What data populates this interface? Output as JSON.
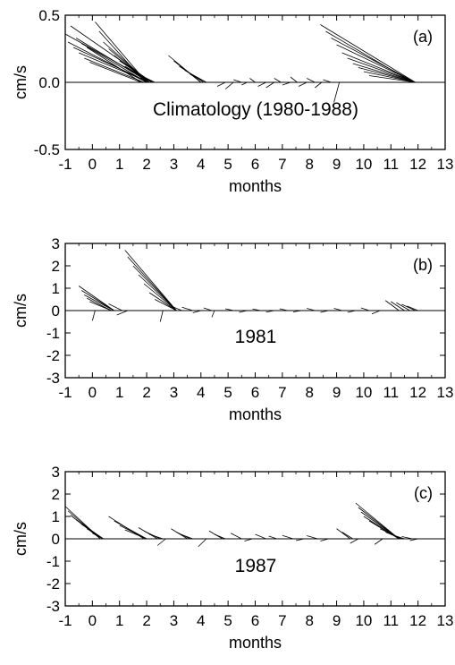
{
  "chart_data": [
    {
      "type": "stick-vector-plot",
      "panel_label": "(a)",
      "annotation": "Climatology (1980-1988)",
      "xlabel": "months",
      "ylabel": "cm/s",
      "xlim": [
        -1,
        13
      ],
      "ylim": [
        -0.5,
        0.5
      ],
      "xticks": [
        "-1",
        "0",
        "1",
        "2",
        "3",
        "4",
        "5",
        "6",
        "7",
        "8",
        "9",
        "10",
        "11",
        "12",
        "13"
      ],
      "yticks": [
        "-0.5",
        "0.0",
        "0.5"
      ],
      "grid": false,
      "vectors": [
        {
          "x": -1.0,
          "dx": 3.2,
          "dy": 0.36
        },
        {
          "x": -0.9,
          "dx": 2.9,
          "dy": 0.3
        },
        {
          "x": -0.8,
          "dx": 3.0,
          "dy": 0.42
        },
        {
          "x": -0.7,
          "dx": 2.8,
          "dy": 0.26
        },
        {
          "x": -0.6,
          "dx": 2.7,
          "dy": 0.33
        },
        {
          "x": -0.5,
          "dx": 2.6,
          "dy": 0.22
        },
        {
          "x": -0.4,
          "dx": 2.4,
          "dy": 0.29
        },
        {
          "x": -0.3,
          "dx": 2.2,
          "dy": 0.18
        },
        {
          "x": -0.2,
          "dx": 2.0,
          "dy": 0.26
        },
        {
          "x": -0.1,
          "dx": 1.9,
          "dy": 0.15
        },
        {
          "x": 0.1,
          "dx": 1.9,
          "dy": 0.45
        },
        {
          "x": 0.25,
          "dx": 1.7,
          "dy": 0.38
        },
        {
          "x": 0.4,
          "dx": 1.7,
          "dy": 0.3
        },
        {
          "x": 0.6,
          "dx": 1.5,
          "dy": 0.25
        },
        {
          "x": 0.8,
          "dx": 1.3,
          "dy": 0.2
        },
        {
          "x": 1.0,
          "dx": 1.2,
          "dy": 0.16
        },
        {
          "x": 1.2,
          "dx": 1.0,
          "dy": 0.12
        },
        {
          "x": 1.4,
          "dx": 0.9,
          "dy": 0.09
        },
        {
          "x": 1.6,
          "dx": 0.7,
          "dy": 0.06
        },
        {
          "x": 2.8,
          "dx": 1.2,
          "dy": 0.2
        },
        {
          "x": 3.0,
          "dx": 1.0,
          "dy": 0.16
        },
        {
          "x": 3.2,
          "dx": 0.9,
          "dy": 0.12
        },
        {
          "x": 3.4,
          "dx": 0.8,
          "dy": 0.09
        },
        {
          "x": 3.6,
          "dx": 0.6,
          "dy": 0.06
        },
        {
          "x": 4.6,
          "dx": 0.3,
          "dy": -0.03
        },
        {
          "x": 4.9,
          "dx": 0.3,
          "dy": -0.05
        },
        {
          "x": 5.2,
          "dx": 0.3,
          "dy": 0.02
        },
        {
          "x": 5.5,
          "dx": 0.2,
          "dy": -0.02
        },
        {
          "x": 5.8,
          "dx": 0.2,
          "dy": 0.03
        },
        {
          "x": 6.1,
          "dx": 0.3,
          "dy": -0.03
        },
        {
          "x": 6.4,
          "dx": 0.3,
          "dy": -0.04
        },
        {
          "x": 6.7,
          "dx": 0.25,
          "dy": 0.03
        },
        {
          "x": 7.0,
          "dx": 0.3,
          "dy": -0.02
        },
        {
          "x": 7.3,
          "dx": 0.25,
          "dy": 0.04
        },
        {
          "x": 7.6,
          "dx": 0.3,
          "dy": -0.03
        },
        {
          "x": 7.9,
          "dx": 0.3,
          "dy": 0.03
        },
        {
          "x": 8.2,
          "dx": 0.25,
          "dy": -0.04
        },
        {
          "x": 8.5,
          "dx": 0.3,
          "dy": 0.02
        },
        {
          "x": 8.9,
          "dx": 0.2,
          "dy": -0.15
        },
        {
          "x": 8.4,
          "dx": 3.5,
          "dy": 0.43
        },
        {
          "x": 8.6,
          "dx": 3.2,
          "dy": 0.38
        },
        {
          "x": 8.8,
          "dx": 3.1,
          "dy": 0.33
        },
        {
          "x": 9.0,
          "dx": 2.9,
          "dy": 0.28
        },
        {
          "x": 9.2,
          "dx": 2.7,
          "dy": 0.22
        },
        {
          "x": 9.4,
          "dx": 2.5,
          "dy": 0.18
        },
        {
          "x": 9.6,
          "dx": 2.3,
          "dy": 0.14
        },
        {
          "x": 9.8,
          "dx": 2.1,
          "dy": 0.11
        },
        {
          "x": 10.0,
          "dx": 1.9,
          "dy": 0.08
        },
        {
          "x": 10.2,
          "dx": 1.7,
          "dy": 0.05
        }
      ]
    },
    {
      "type": "stick-vector-plot",
      "panel_label": "(b)",
      "annotation": "1981",
      "xlabel": "months",
      "ylabel": "cm/s",
      "xlim": [
        -1,
        13
      ],
      "ylim": [
        -3,
        3
      ],
      "xticks": [
        "-1",
        "0",
        "1",
        "2",
        "3",
        "4",
        "5",
        "6",
        "7",
        "8",
        "9",
        "10",
        "11",
        "12",
        "13"
      ],
      "yticks": [
        "-3",
        "-2",
        "-1",
        "0",
        "1",
        "2",
        "3"
      ],
      "grid": false,
      "vectors": [
        {
          "x": -0.5,
          "dx": 1.3,
          "dy": 1.1
        },
        {
          "x": -0.4,
          "dx": 1.2,
          "dy": 0.9
        },
        {
          "x": -0.3,
          "dx": 1.1,
          "dy": 0.7
        },
        {
          "x": -0.2,
          "dx": 0.9,
          "dy": 0.55
        },
        {
          "x": -0.1,
          "dx": 0.8,
          "dy": 0.4
        },
        {
          "x": 0.0,
          "dx": 0.1,
          "dy": -0.45
        },
        {
          "x": 0.6,
          "dx": 0.5,
          "dy": 0.3
        },
        {
          "x": 0.9,
          "dx": 0.4,
          "dy": -0.2
        },
        {
          "x": 1.2,
          "dx": 1.9,
          "dy": 2.7
        },
        {
          "x": 1.3,
          "dx": 1.8,
          "dy": 2.4
        },
        {
          "x": 1.5,
          "dx": 1.6,
          "dy": 2.0
        },
        {
          "x": 1.7,
          "dx": 1.4,
          "dy": 1.6
        },
        {
          "x": 1.9,
          "dx": 1.2,
          "dy": 1.2
        },
        {
          "x": 2.1,
          "dx": 1.0,
          "dy": 0.8
        },
        {
          "x": 2.3,
          "dx": 0.8,
          "dy": 0.5
        },
        {
          "x": 2.5,
          "dx": 0.1,
          "dy": -0.5
        },
        {
          "x": 2.9,
          "dx": 0.4,
          "dy": 0.2
        },
        {
          "x": 3.3,
          "dx": 0.4,
          "dy": 0.15
        },
        {
          "x": 3.7,
          "dx": 0.3,
          "dy": -0.1
        },
        {
          "x": 4.1,
          "dx": 0.3,
          "dy": 0.12
        },
        {
          "x": 4.4,
          "dx": 0.1,
          "dy": -0.3
        },
        {
          "x": 4.9,
          "dx": 0.3,
          "dy": 0.08
        },
        {
          "x": 5.4,
          "dx": 0.3,
          "dy": -0.08
        },
        {
          "x": 5.9,
          "dx": 0.3,
          "dy": 0.07
        },
        {
          "x": 6.4,
          "dx": 0.3,
          "dy": -0.07
        },
        {
          "x": 6.9,
          "dx": 0.3,
          "dy": 0.08
        },
        {
          "x": 7.4,
          "dx": 0.3,
          "dy": -0.06
        },
        {
          "x": 7.9,
          "dx": 0.3,
          "dy": 0.1
        },
        {
          "x": 8.4,
          "dx": 0.3,
          "dy": -0.08
        },
        {
          "x": 8.9,
          "dx": 0.3,
          "dy": 0.1
        },
        {
          "x": 9.4,
          "dx": 0.3,
          "dy": -0.08
        },
        {
          "x": 9.9,
          "dx": 0.3,
          "dy": 0.12
        },
        {
          "x": 10.3,
          "dx": 0.3,
          "dy": -0.15
        },
        {
          "x": 10.8,
          "dx": 0.5,
          "dy": 0.45
        },
        {
          "x": 11.0,
          "dx": 0.5,
          "dy": 0.4
        },
        {
          "x": 11.2,
          "dx": 0.5,
          "dy": 0.35
        },
        {
          "x": 11.4,
          "dx": 0.5,
          "dy": 0.28
        },
        {
          "x": 11.6,
          "dx": 0.4,
          "dy": 0.2
        }
      ]
    },
    {
      "type": "stick-vector-plot",
      "panel_label": "(c)",
      "annotation": "1987",
      "xlabel": "months",
      "ylabel": "cm/s",
      "xlim": [
        -1,
        13
      ],
      "ylim": [
        -3,
        3
      ],
      "xticks": [
        "-1",
        "0",
        "1",
        "2",
        "3",
        "4",
        "5",
        "6",
        "7",
        "8",
        "9",
        "10",
        "11",
        "12",
        "13"
      ],
      "yticks": [
        "-3",
        "-2",
        "-1",
        "0",
        "1",
        "2",
        "3"
      ],
      "grid": false,
      "vectors": [
        {
          "x": -1.0,
          "dx": 1.3,
          "dy": 1.45
        },
        {
          "x": -0.9,
          "dx": 1.2,
          "dy": 1.25
        },
        {
          "x": -0.8,
          "dx": 1.1,
          "dy": 1.05
        },
        {
          "x": -0.6,
          "dx": 1.0,
          "dy": 0.85
        },
        {
          "x": -0.4,
          "dx": 0.8,
          "dy": 0.65
        },
        {
          "x": -0.2,
          "dx": 0.6,
          "dy": 0.45
        },
        {
          "x": 0.0,
          "dx": 0.4,
          "dy": 0.25
        },
        {
          "x": 0.6,
          "dx": 1.3,
          "dy": 1.0
        },
        {
          "x": 0.8,
          "dx": 1.2,
          "dy": 0.8
        },
        {
          "x": 1.0,
          "dx": 1.0,
          "dy": 0.6
        },
        {
          "x": 1.2,
          "dx": 0.8,
          "dy": 0.4
        },
        {
          "x": 1.7,
          "dx": 0.7,
          "dy": 0.5
        },
        {
          "x": 1.9,
          "dx": 0.6,
          "dy": 0.35
        },
        {
          "x": 2.1,
          "dx": 0.5,
          "dy": 0.2
        },
        {
          "x": 2.4,
          "dx": 0.3,
          "dy": -0.3
        },
        {
          "x": 2.9,
          "dx": 0.6,
          "dy": 0.45
        },
        {
          "x": 3.1,
          "dx": 0.5,
          "dy": 0.3
        },
        {
          "x": 3.3,
          "dx": 0.4,
          "dy": 0.18
        },
        {
          "x": 3.9,
          "dx": 0.3,
          "dy": -0.35
        },
        {
          "x": 4.3,
          "dx": 0.5,
          "dy": 0.35
        },
        {
          "x": 4.5,
          "dx": 0.4,
          "dy": 0.2
        },
        {
          "x": 5.1,
          "dx": 0.4,
          "dy": 0.25
        },
        {
          "x": 5.6,
          "dx": 0.3,
          "dy": -0.1
        },
        {
          "x": 6.0,
          "dx": 0.4,
          "dy": 0.2
        },
        {
          "x": 6.5,
          "dx": 0.3,
          "dy": 0.12
        },
        {
          "x": 7.0,
          "dx": 0.4,
          "dy": 0.15
        },
        {
          "x": 7.5,
          "dx": 0.3,
          "dy": -0.08
        },
        {
          "x": 7.9,
          "dx": 0.4,
          "dy": 0.14
        },
        {
          "x": 8.4,
          "dx": 0.3,
          "dy": -0.1
        },
        {
          "x": 9.0,
          "dx": 0.5,
          "dy": 0.45
        },
        {
          "x": 9.2,
          "dx": 0.4,
          "dy": 0.3
        },
        {
          "x": 9.5,
          "dx": 0.3,
          "dy": -0.2
        },
        {
          "x": 9.7,
          "dx": 1.6,
          "dy": 1.6
        },
        {
          "x": 9.8,
          "dx": 1.5,
          "dy": 1.4
        },
        {
          "x": 9.9,
          "dx": 1.4,
          "dy": 1.2
        },
        {
          "x": 10.0,
          "dx": 1.3,
          "dy": 1.0
        },
        {
          "x": 10.2,
          "dx": 1.1,
          "dy": 0.8
        },
        {
          "x": 10.4,
          "dx": 0.3,
          "dy": -0.25
        },
        {
          "x": 10.6,
          "dx": 0.8,
          "dy": 0.45
        },
        {
          "x": 10.8,
          "dx": 0.6,
          "dy": 0.3
        },
        {
          "x": 11.0,
          "dx": 0.5,
          "dy": 0.2
        },
        {
          "x": 11.4,
          "dx": 0.4,
          "dy": 0.1
        },
        {
          "x": 11.7,
          "dx": 0.3,
          "dy": -0.08
        }
      ]
    }
  ]
}
